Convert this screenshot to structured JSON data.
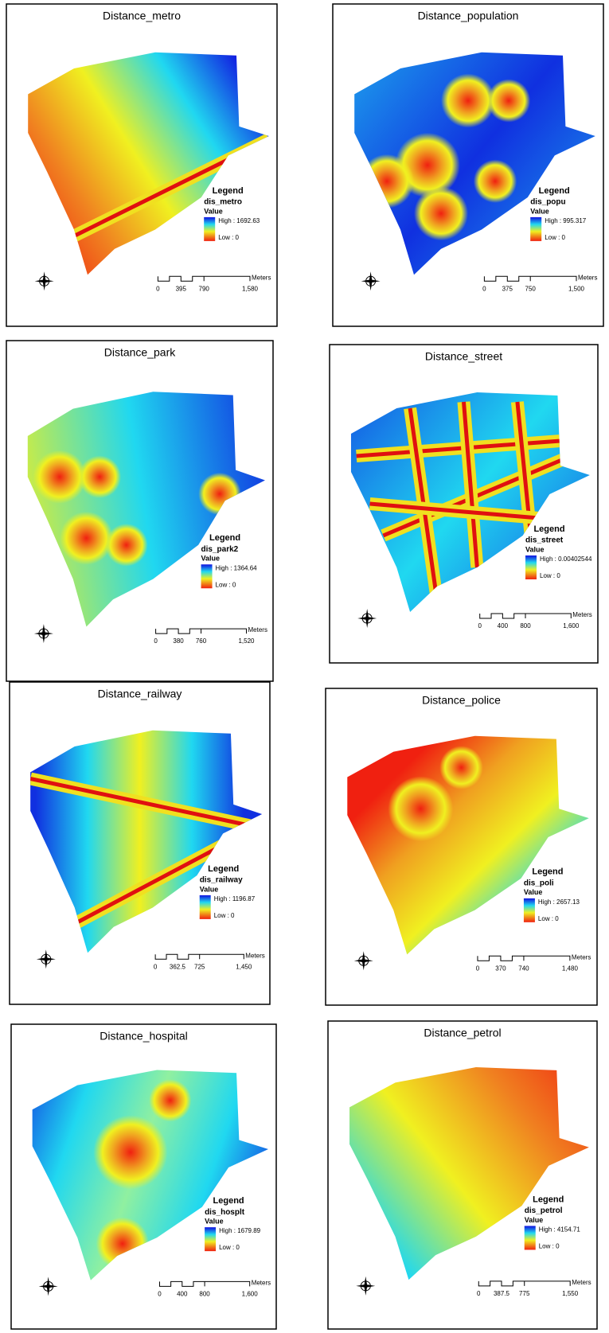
{
  "panels": [
    {
      "title": "Distance_metro",
      "legend": {
        "title": "Legend",
        "layer": "dis_metro",
        "field": "Value",
        "high": "High : 1692.63",
        "low": "Low : 0"
      },
      "scale": {
        "labels": [
          "0",
          "395",
          "790",
          "1,580"
        ],
        "unit": "Meters"
      }
    },
    {
      "title": "Distance_population",
      "legend": {
        "title": "Legend",
        "layer": "dis_popu",
        "field": "Value",
        "high": "High : 995.317",
        "low": "Low : 0"
      },
      "scale": {
        "labels": [
          "0",
          "375",
          "750",
          "1,500"
        ],
        "unit": "Meters"
      }
    },
    {
      "title": "Distance_park",
      "legend": {
        "title": "Legend",
        "layer": "dis_park2",
        "field": "Value",
        "high": "High : 1364.64",
        "low": "Low : 0"
      },
      "scale": {
        "labels": [
          "0",
          "380",
          "760",
          "1,520"
        ],
        "unit": "Meters"
      }
    },
    {
      "title": "Distance_street",
      "legend": {
        "title": "Legend",
        "layer": "dis_street",
        "field": "Value",
        "high": "High : 0.00402544",
        "low": "Low : 0"
      },
      "scale": {
        "labels": [
          "0",
          "400",
          "800",
          "1,600"
        ],
        "unit": "Meters"
      }
    },
    {
      "title": "Distance_railway",
      "legend": {
        "title": "Legend",
        "layer": "dis_railway",
        "field": "Value",
        "high": "High : 1196.87",
        "low": "Low : 0"
      },
      "scale": {
        "labels": [
          "0",
          "362.5",
          "725",
          "1,450"
        ],
        "unit": "Meters"
      }
    },
    {
      "title": "Distance_police",
      "legend": {
        "title": "Legend",
        "layer": "dis_poli",
        "field": "Value",
        "high": "High : 2657.13",
        "low": "Low : 0"
      },
      "scale": {
        "labels": [
          "0",
          "370",
          "740",
          "1,480"
        ],
        "unit": "Meters"
      }
    },
    {
      "title": "Distance_hospital",
      "legend": {
        "title": "Legend",
        "layer": "dis_hosplt",
        "field": "Value",
        "high": "High : 1679.89",
        "low": "Low : 0"
      },
      "scale": {
        "labels": [
          "0",
          "400",
          "800",
          "1,600"
        ],
        "unit": "Meters"
      }
    },
    {
      "title": "Distance_petrol",
      "legend": {
        "title": "Legend",
        "layer": "dis_petrol",
        "field": "Value",
        "high": "High : 4154.71",
        "low": "Low : 0"
      },
      "scale": {
        "labels": [
          "0",
          "387.5",
          "775",
          "1,550"
        ],
        "unit": "Meters"
      }
    }
  ]
}
